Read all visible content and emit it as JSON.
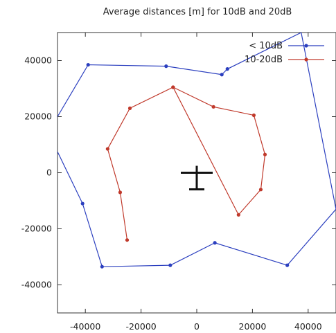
{
  "chart_data": {
    "type": "line",
    "title": "Average distances [m] for 10dB and 20dB",
    "xlabel": "",
    "ylabel": "",
    "xlim": [
      -50000,
      50000
    ],
    "ylim": [
      -50000,
      50000
    ],
    "x_ticks": [
      -40000,
      -20000,
      0,
      20000,
      40000
    ],
    "y_ticks": [
      40000,
      20000,
      0,
      -20000,
      -40000
    ],
    "x_tick_labels": [
      "-40000",
      "-20000",
      "0",
      "20000",
      "40000"
    ],
    "y_tick_labels": [
      "40000",
      "20000",
      "0",
      "-20000",
      "-40000"
    ],
    "grid": false,
    "legend_position": "top-right",
    "series": [
      {
        "name": "< 10dB",
        "color": "#2b3fbf",
        "points": [
          [
            -50000,
            20000
          ],
          [
            -39000,
            38500
          ],
          [
            -11000,
            38000
          ],
          [
            9000,
            35000
          ],
          [
            11000,
            37000
          ],
          [
            37500,
            50000
          ],
          [
            50000,
            -13000
          ],
          [
            32500,
            -33000
          ],
          [
            6500,
            -25000
          ],
          [
            -9500,
            -33000
          ],
          [
            -34000,
            -33500
          ],
          [
            -41000,
            -11000
          ],
          [
            -50000,
            7500
          ]
        ]
      },
      {
        "name": "10-20dB",
        "color": "#c0392b",
        "points": [
          [
            -8500,
            30500
          ],
          [
            6000,
            23500
          ],
          [
            20500,
            20500
          ],
          [
            24500,
            6500
          ],
          [
            23000,
            -6000
          ],
          [
            15000,
            -15000
          ],
          [
            -8500,
            30500
          ],
          [
            -24000,
            23000
          ],
          [
            -32000,
            8500
          ],
          [
            -27500,
            -7000
          ],
          [
            -25000,
            -24000
          ]
        ]
      }
    ],
    "marker": {
      "symbol": "plus",
      "x": 0,
      "y": 0,
      "color": "#111111"
    }
  }
}
